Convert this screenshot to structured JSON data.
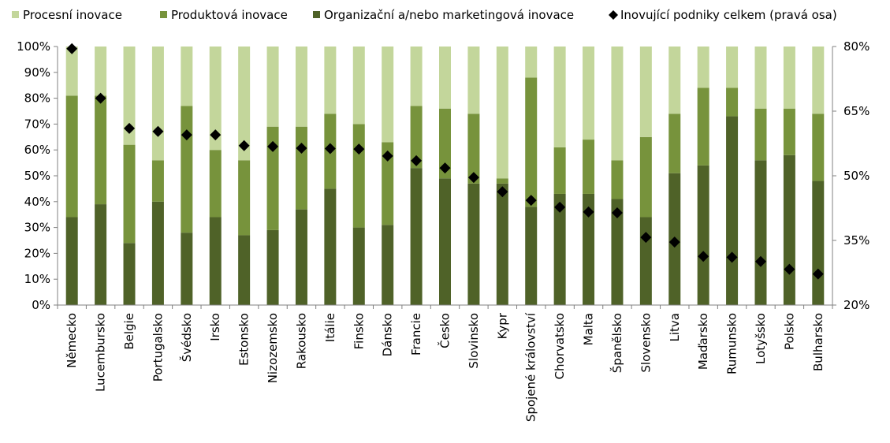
{
  "chart_data": {
    "type": "bar",
    "stacked": true,
    "categories": [
      "Německo",
      "Lucembursko",
      "Belgie",
      "Portugalsko",
      "Švédsko",
      "Irsko",
      "Estonsko",
      "Nizozemsko",
      "Rakousko",
      "Itálie",
      "Finsko",
      "Dánsko",
      "Francie",
      "Česko",
      "Slovinsko",
      "Kypr",
      "Spojené království",
      "Chorvatsko",
      "Malta",
      "Španělsko",
      "Slovensko",
      "Litva",
      "Maďarsko",
      "Rumunsko",
      "Lotyšsko",
      "Polsko",
      "Bulharsko"
    ],
    "series": [
      {
        "name": "Organizační a/nebo marketingová inovace",
        "color": "#4f6228",
        "kind": "bar",
        "values": [
          34,
          39,
          24,
          40,
          28,
          34,
          27,
          29,
          37,
          45,
          30,
          31,
          53,
          49,
          47,
          47,
          38,
          43,
          43,
          41,
          34,
          51,
          54,
          73,
          56,
          58,
          48
        ]
      },
      {
        "name": "Produktová inovace",
        "color": "#77933c",
        "kind": "bar",
        "values": [
          47,
          42,
          38,
          16,
          49,
          26,
          29,
          40,
          32,
          29,
          40,
          32,
          24,
          27,
          27,
          2,
          50,
          18,
          21,
          15,
          31,
          23,
          30,
          11,
          20,
          18,
          26
        ]
      },
      {
        "name": "Procesní inovace",
        "color": "#c3d69b",
        "kind": "bar",
        "values": [
          19,
          19,
          38,
          44,
          23,
          40,
          44,
          31,
          31,
          26,
          30,
          37,
          23,
          24,
          26,
          51,
          12,
          39,
          36,
          44,
          35,
          26,
          16,
          16,
          24,
          24,
          26
        ]
      },
      {
        "name": "Inovující podniky celkem (pravá osa)",
        "color": "#000000",
        "kind": "marker",
        "axis": "right",
        "values": [
          79.5,
          68,
          61,
          60.3,
          59.5,
          59.5,
          57,
          56.8,
          56.4,
          56.3,
          56.2,
          54.6,
          53.5,
          51.8,
          49.6,
          46.3,
          44.3,
          42.7,
          41.6,
          41.4,
          35.7,
          34.6,
          31.3,
          31.1,
          30.1,
          28.3,
          27.2
        ]
      }
    ],
    "legend_order": [
      "Procesní inovace",
      "Produktová inovace",
      "Organizační a/nebo marketingová inovace",
      "Inovující podniky celkem (pravá osa)"
    ],
    "y_left": {
      "min": 0,
      "max": 100,
      "step": 10,
      "ticks": [
        "0%",
        "10%",
        "20%",
        "30%",
        "40%",
        "50%",
        "60%",
        "70%",
        "80%",
        "90%",
        "100%"
      ]
    },
    "y_right": {
      "min": 20,
      "max": 80,
      "ticks": [
        {
          "v": 20,
          "label": "20%"
        },
        {
          "v": 35,
          "label": "35%"
        },
        {
          "v": 50,
          "label": "50%"
        },
        {
          "v": 65,
          "label": "65%"
        },
        {
          "v": 80,
          "label": "80%"
        }
      ]
    },
    "legend_position": "top",
    "grid": false
  }
}
